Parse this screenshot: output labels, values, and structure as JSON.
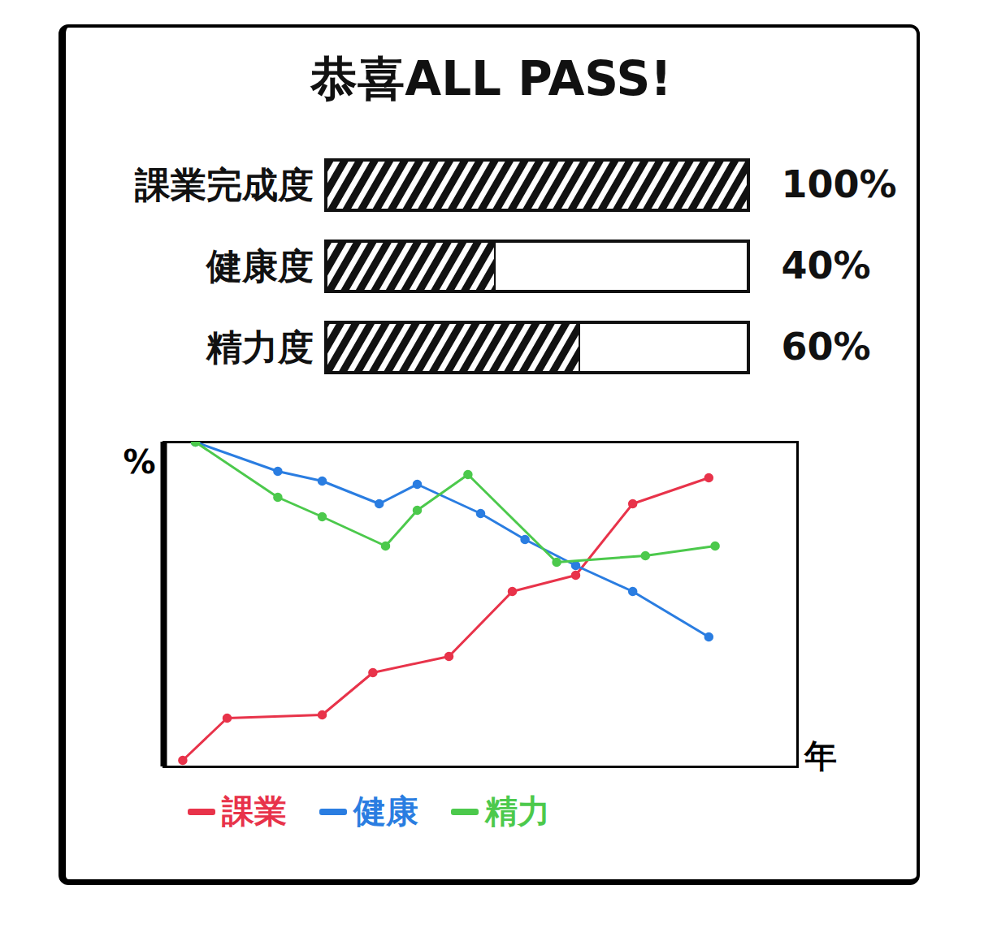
{
  "chart_data": [
    {
      "type": "bar",
      "title": "恭喜ALL PASS!",
      "orientation": "horizontal",
      "categories": [
        "課業完成度",
        "健康度",
        "精力度"
      ],
      "values": [
        100,
        40,
        60
      ],
      "value_labels": [
        "100%",
        "40%",
        "60%"
      ],
      "xlim": [
        0,
        100
      ],
      "data_labels": true,
      "tick_labels": "y",
      "color": "#111111"
    },
    {
      "type": "line",
      "x_label": "年",
      "y_label": "%",
      "xlim": [
        0,
        10
      ],
      "ylim": [
        0,
        100
      ],
      "tick_labels": false,
      "marker": "circle",
      "series": [
        {
          "name": "課業",
          "color": "#e8334a",
          "x": [
            0.3,
            1.0,
            2.5,
            3.3,
            4.5,
            5.5,
            6.5,
            7.4,
            8.6
          ],
          "values": [
            2,
            15,
            16,
            29,
            34,
            54,
            59,
            81,
            89
          ]
        },
        {
          "name": "健康",
          "color": "#2a7de1",
          "x": [
            0.5,
            1.8,
            2.5,
            3.4,
            4.0,
            5.0,
            5.7,
            6.5,
            7.4,
            8.6
          ],
          "values": [
            100,
            91,
            88,
            81,
            87,
            78,
            70,
            62,
            54,
            40
          ]
        },
        {
          "name": "精力",
          "color": "#4cc94c",
          "x": [
            0.5,
            1.8,
            2.5,
            3.5,
            4.0,
            4.8,
            6.2,
            7.6,
            8.7
          ],
          "values": [
            100,
            83,
            77,
            68,
            79,
            90,
            63,
            65,
            68
          ]
        }
      ]
    }
  ]
}
